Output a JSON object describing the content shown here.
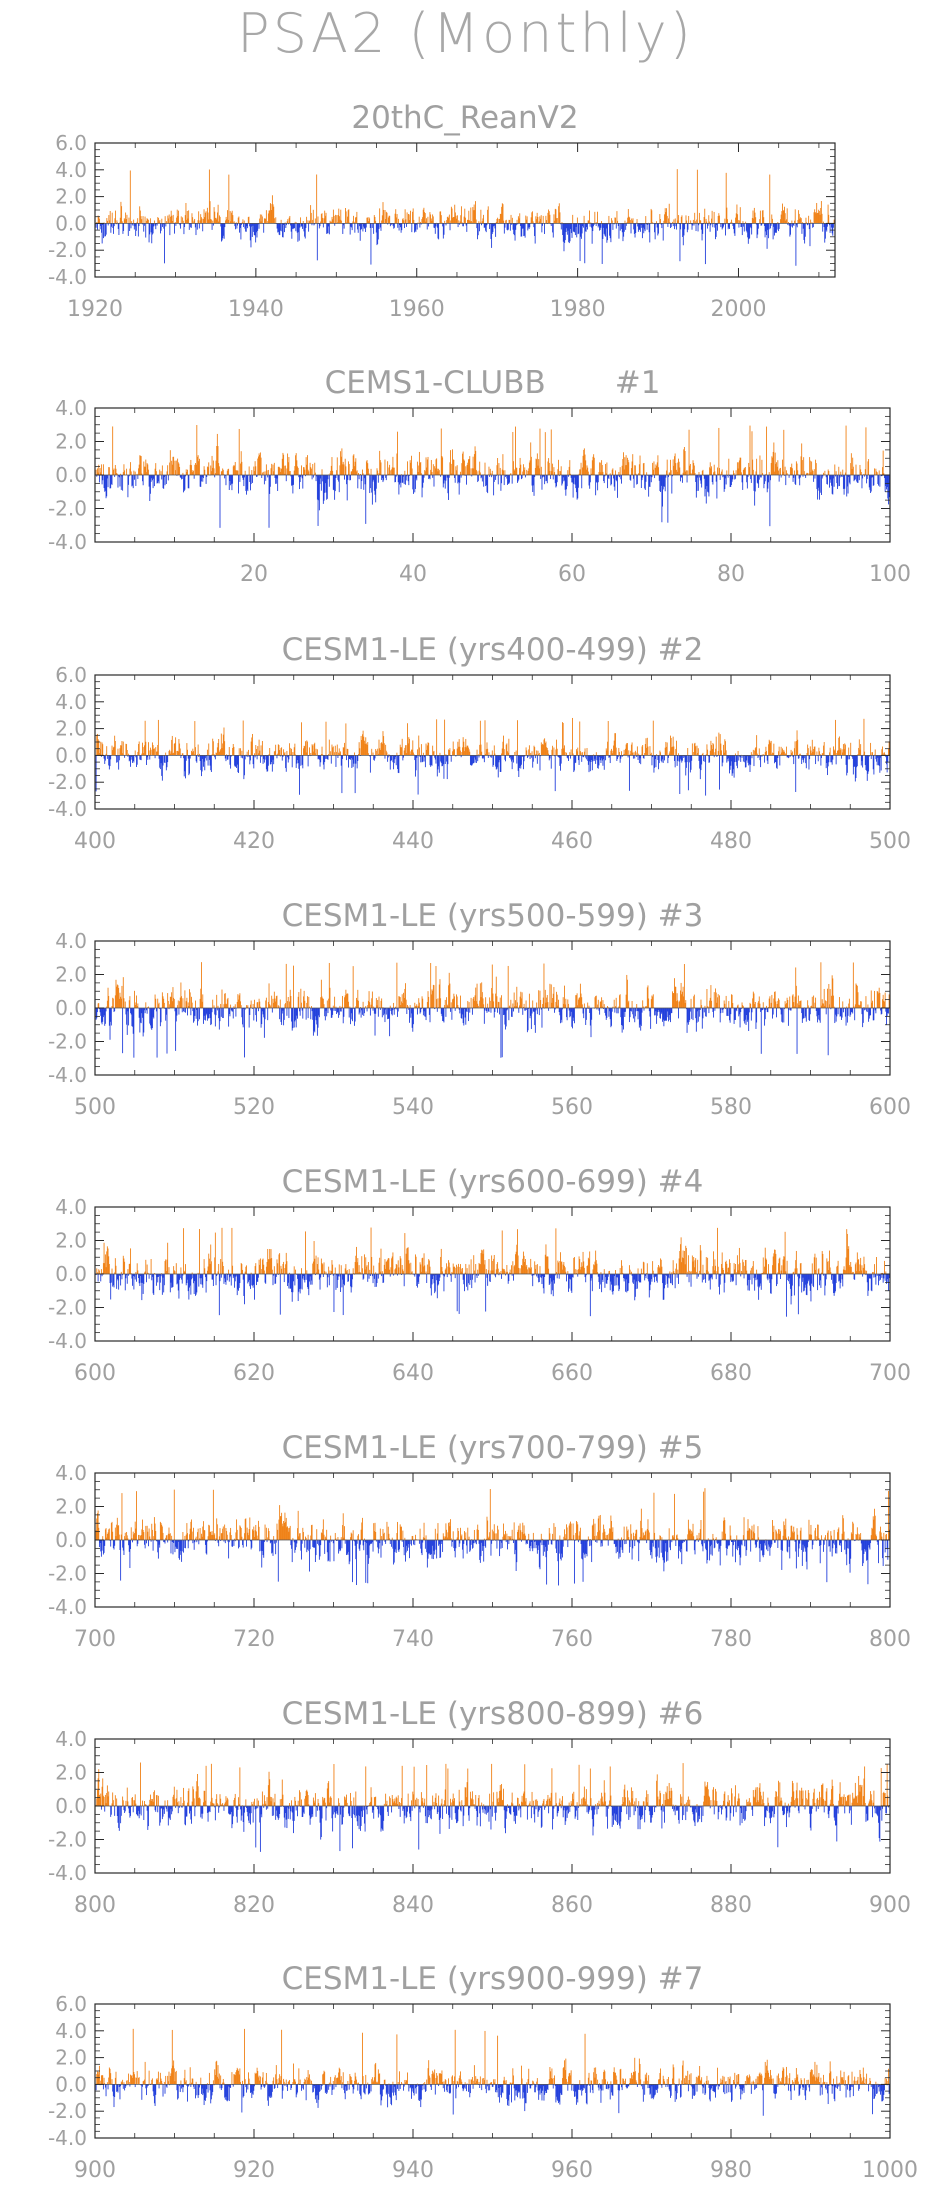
{
  "title": "PSA2 (Monthly)",
  "colors": {
    "positive": "#f08218",
    "negative": "#2340dc",
    "frame": "#2a2a2a",
    "text": "#a0a0a0"
  },
  "chart_data": [
    {
      "type": "bar",
      "title": "20thC_ReanV2",
      "x_range": [
        1920,
        2012
      ],
      "ylim": [
        -4,
        6
      ],
      "y_ticks": [
        "6.0",
        "4.0",
        "2.0",
        "0.0",
        "-2.0",
        "-4.0"
      ],
      "x_ticks": [
        1920,
        1940,
        1960,
        1980,
        2000
      ],
      "peak_positive": 4.2,
      "peak_negative": -3.2
    },
    {
      "type": "bar",
      "title": "CEMS1-CLUBB       #1",
      "x_range": [
        0,
        100
      ],
      "ylim": [
        -4,
        4
      ],
      "y_ticks": [
        "4.0",
        "2.0",
        "0.0",
        "-2.0",
        "-4.0"
      ],
      "x_ticks": [
        20,
        40,
        60,
        80,
        100
      ],
      "peak_positive": 3.0,
      "peak_negative": -3.2
    },
    {
      "type": "bar",
      "title": "CESM1-LE (yrs400-499) #2",
      "x_range": [
        400,
        500
      ],
      "ylim": [
        -4,
        6
      ],
      "y_ticks": [
        "6.0",
        "4.0",
        "2.0",
        "0.0",
        "-2.0",
        "-4.0"
      ],
      "x_ticks": [
        400,
        420,
        440,
        460,
        480,
        500
      ],
      "peak_positive": 2.8,
      "peak_negative": -3.0
    },
    {
      "type": "bar",
      "title": "CESM1-LE (yrs500-599) #3",
      "x_range": [
        500,
        600
      ],
      "ylim": [
        -4,
        4
      ],
      "y_ticks": [
        "4.0",
        "2.0",
        "0.0",
        "-2.0",
        "-4.0"
      ],
      "x_ticks": [
        500,
        520,
        540,
        560,
        580,
        600
      ],
      "peak_positive": 2.8,
      "peak_negative": -3.0
    },
    {
      "type": "bar",
      "title": "CESM1-LE (yrs600-699) #4",
      "x_range": [
        600,
        700
      ],
      "ylim": [
        -4,
        4
      ],
      "y_ticks": [
        "4.0",
        "2.0",
        "0.0",
        "-2.0",
        "-4.0"
      ],
      "x_ticks": [
        600,
        620,
        640,
        660,
        680,
        700
      ],
      "peak_positive": 2.8,
      "peak_negative": -2.6
    },
    {
      "type": "bar",
      "title": "CESM1-LE (yrs700-799) #5",
      "x_range": [
        700,
        800
      ],
      "ylim": [
        -4,
        4
      ],
      "y_ticks": [
        "4.0",
        "2.0",
        "0.0",
        "-2.0",
        "-4.0"
      ],
      "x_ticks": [
        700,
        720,
        740,
        760,
        780,
        800
      ],
      "peak_positive": 3.2,
      "peak_negative": -2.8
    },
    {
      "type": "bar",
      "title": "CESM1-LE (yrs800-899) #6",
      "x_range": [
        800,
        900
      ],
      "ylim": [
        -4,
        4
      ],
      "y_ticks": [
        "4.0",
        "2.0",
        "0.0",
        "-2.0",
        "-4.0"
      ],
      "x_ticks": [
        800,
        820,
        840,
        860,
        880,
        900
      ],
      "peak_positive": 2.6,
      "peak_negative": -2.8
    },
    {
      "type": "bar",
      "title": "CESM1-LE (yrs900-999) #7",
      "x_range": [
        900,
        1000
      ],
      "ylim": [
        -4,
        6
      ],
      "y_ticks": [
        "6.0",
        "4.0",
        "2.0",
        "0.0",
        "-2.0",
        "-4.0"
      ],
      "x_ticks": [
        900,
        920,
        940,
        960,
        980,
        1000
      ],
      "peak_positive": 4.2,
      "peak_negative": -2.4
    }
  ]
}
